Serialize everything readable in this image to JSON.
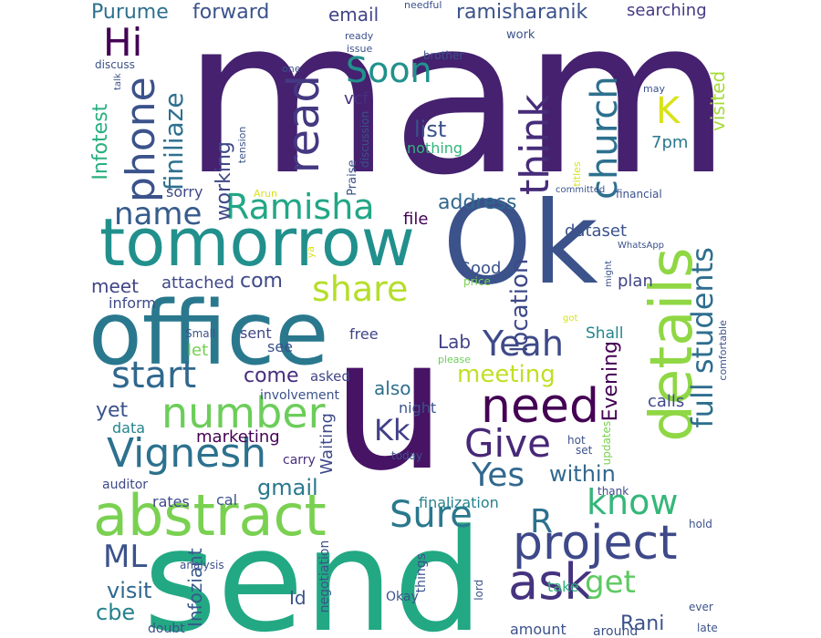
{
  "words": [
    {
      "text": "mam",
      "color": "#45216f"
    },
    {
      "text": "send",
      "color": "#23a884"
    },
    {
      "text": "Ok",
      "color": "#3b528b"
    },
    {
      "text": "office",
      "color": "#2a788e"
    },
    {
      "text": "u",
      "color": "#471365"
    },
    {
      "text": "tomorrow",
      "color": "#21908d"
    },
    {
      "text": "abstract",
      "color": "#7ad151"
    },
    {
      "text": "details",
      "color": "#8fd744"
    },
    {
      "text": "Vignesh",
      "color": "#2c718e"
    },
    {
      "text": "project",
      "color": "#3e4989"
    },
    {
      "text": "need",
      "color": "#440154"
    },
    {
      "text": "number",
      "color": "#6ccd5a"
    },
    {
      "text": "ask",
      "color": "#46337f"
    },
    {
      "text": "Ramisha",
      "color": "#22a785"
    },
    {
      "text": "share",
      "color": "#b5de2b"
    },
    {
      "text": "start",
      "color": "#31688e"
    },
    {
      "text": "Yeah",
      "color": "#3e4a89"
    },
    {
      "text": "Give",
      "color": "#482878"
    },
    {
      "text": "full students",
      "color": "#2e6e8e"
    },
    {
      "text": "Yes",
      "color": "#31688e"
    },
    {
      "text": "Sure",
      "color": "#2a788e"
    },
    {
      "text": "Soon",
      "color": "#21918c"
    },
    {
      "text": "name",
      "color": "#365c8d"
    },
    {
      "text": "read",
      "color": "#453882"
    },
    {
      "text": "think",
      "color": "#472c7a"
    },
    {
      "text": "church",
      "color": "#2d708e"
    },
    {
      "text": "phone",
      "color": "#3b528b"
    },
    {
      "text": "Hi",
      "color": "#440154"
    },
    {
      "text": "know",
      "color": "#35b779"
    },
    {
      "text": "get",
      "color": "#5ec962"
    },
    {
      "text": "ML",
      "color": "#3b528b"
    },
    {
      "text": "R",
      "color": "#2d708e"
    },
    {
      "text": "K",
      "color": "#d8e219"
    },
    {
      "text": "Kk",
      "color": "#424086"
    },
    {
      "text": "meeting",
      "color": "#c2df23"
    },
    {
      "text": "gmail",
      "color": "#2a788e"
    },
    {
      "text": "within",
      "color": "#31688e"
    },
    {
      "text": "location",
      "color": "#3e4989"
    },
    {
      "text": "finiliaze",
      "color": "#2d708e"
    },
    {
      "text": "visit",
      "color": "#31688e"
    },
    {
      "text": "cbe",
      "color": "#26828e"
    },
    {
      "text": "Rani",
      "color": "#3b528b"
    },
    {
      "text": "Infotest",
      "color": "#29af7f"
    },
    {
      "text": "working",
      "color": "#3f4788"
    },
    {
      "text": "list",
      "color": "#3b528b"
    },
    {
      "text": "address",
      "color": "#31688e"
    },
    {
      "text": "com",
      "color": "#3e4a89"
    },
    {
      "text": "meet",
      "color": "#414487"
    },
    {
      "text": "come",
      "color": "#472d7b"
    },
    {
      "text": "Lab",
      "color": "#414487"
    },
    {
      "text": "also",
      "color": "#2e6f8e"
    },
    {
      "text": "yet",
      "color": "#3b528b"
    },
    {
      "text": "Evening",
      "color": "#440154"
    },
    {
      "text": "visited",
      "color": "#a5db36"
    },
    {
      "text": "Purume",
      "color": "#2c718e"
    },
    {
      "text": "forward",
      "color": "#3b528b"
    },
    {
      "text": "email",
      "color": "#414487"
    },
    {
      "text": "ramisharanik",
      "color": "#3b528b"
    },
    {
      "text": "searching",
      "color": "#443a83"
    },
    {
      "text": "Id",
      "color": "#3b528b"
    },
    {
      "text": "Infoziant",
      "color": "#38598c"
    },
    {
      "text": "marketing",
      "color": "#440154"
    },
    {
      "text": "Waiting",
      "color": "#3e4989"
    },
    {
      "text": "let",
      "color": "#75d054"
    },
    {
      "text": "attached",
      "color": "#3f4788"
    },
    {
      "text": "Good",
      "color": "#3b528b"
    },
    {
      "text": "plan",
      "color": "#414487"
    },
    {
      "text": "calls",
      "color": "#3e4989"
    },
    {
      "text": "Shall",
      "color": "#24868e"
    },
    {
      "text": "7pm",
      "color": "#2a788e"
    },
    {
      "text": "dataset",
      "color": "#3b528b"
    },
    {
      "text": "file",
      "color": "#440154"
    },
    {
      "text": "finalization",
      "color": "#26828e"
    },
    {
      "text": "vcf",
      "color": "#46307e"
    },
    {
      "text": "nothing",
      "color": "#31b57b"
    },
    {
      "text": "data",
      "color": "#25838e"
    },
    {
      "text": "rates",
      "color": "#3e4989"
    },
    {
      "text": "cal",
      "color": "#3b528b"
    },
    {
      "text": "inform",
      "color": "#3e4a89"
    },
    {
      "text": "sorry",
      "color": "#3e4989"
    },
    {
      "text": "free",
      "color": "#414487"
    },
    {
      "text": "sent",
      "color": "#414487"
    },
    {
      "text": "see",
      "color": "#3b528b"
    },
    {
      "text": "asked",
      "color": "#414487"
    },
    {
      "text": "night",
      "color": "#3b528b"
    },
    {
      "text": "involvement",
      "color": "#3b528b"
    },
    {
      "text": "take",
      "color": "#2fb47c"
    },
    {
      "text": "amount",
      "color": "#3b528b"
    },
    {
      "text": "around",
      "color": "#3b528b"
    },
    {
      "text": "things",
      "color": "#3b528b"
    },
    {
      "text": "Okay",
      "color": "#3b528b"
    },
    {
      "text": "carry",
      "color": "#46307e"
    },
    {
      "text": "auditor",
      "color": "#3e4989"
    },
    {
      "text": "doubt",
      "color": "#3b528b"
    },
    {
      "text": "analysis",
      "color": "#3b528b"
    },
    {
      "text": "negotiation",
      "color": "#3b528b"
    },
    {
      "text": "lord",
      "color": "#3b528b"
    },
    {
      "text": "late",
      "color": "#3b528b"
    },
    {
      "text": "ever",
      "color": "#3b528b"
    },
    {
      "text": "hold",
      "color": "#3b528b"
    },
    {
      "text": "thank",
      "color": "#3e4989"
    },
    {
      "text": "hot",
      "color": "#3b528b"
    },
    {
      "text": "set",
      "color": "#3b528b"
    },
    {
      "text": "today",
      "color": "#3b528b"
    },
    {
      "text": "updates",
      "color": "#7ad151"
    },
    {
      "text": "comfortable",
      "color": "#3b528b"
    },
    {
      "text": "price",
      "color": "#7ad151"
    },
    {
      "text": "please",
      "color": "#6ccd5a"
    },
    {
      "text": "got",
      "color": "#d8e219"
    },
    {
      "text": "Small",
      "color": "#3b528b"
    },
    {
      "text": "might",
      "color": "#3b528b"
    },
    {
      "text": "WhatsApp",
      "color": "#3b528b"
    },
    {
      "text": "financial",
      "color": "#3b528b"
    },
    {
      "text": "titles",
      "color": "#d8e219"
    },
    {
      "text": "may",
      "color": "#3b528b"
    },
    {
      "text": "committed",
      "color": "#3b528b"
    },
    {
      "text": "Arun",
      "color": "#d8e219"
    },
    {
      "text": "ya",
      "color": "#d8e219"
    },
    {
      "text": "Praise",
      "color": "#3b528b"
    },
    {
      "text": "discussion",
      "color": "#3b528b"
    },
    {
      "text": "tension",
      "color": "#3b528b"
    },
    {
      "text": "talk",
      "color": "#3b528b"
    },
    {
      "text": "one",
      "color": "#3b528b"
    },
    {
      "text": "discuss",
      "color": "#3b528b"
    },
    {
      "text": "brother",
      "color": "#3b528b"
    },
    {
      "text": "issue",
      "color": "#3b528b"
    },
    {
      "text": "ready",
      "color": "#3b528b"
    },
    {
      "text": "work",
      "color": "#3b528b"
    },
    {
      "text": "needful",
      "color": "#3b528b"
    }
  ]
}
